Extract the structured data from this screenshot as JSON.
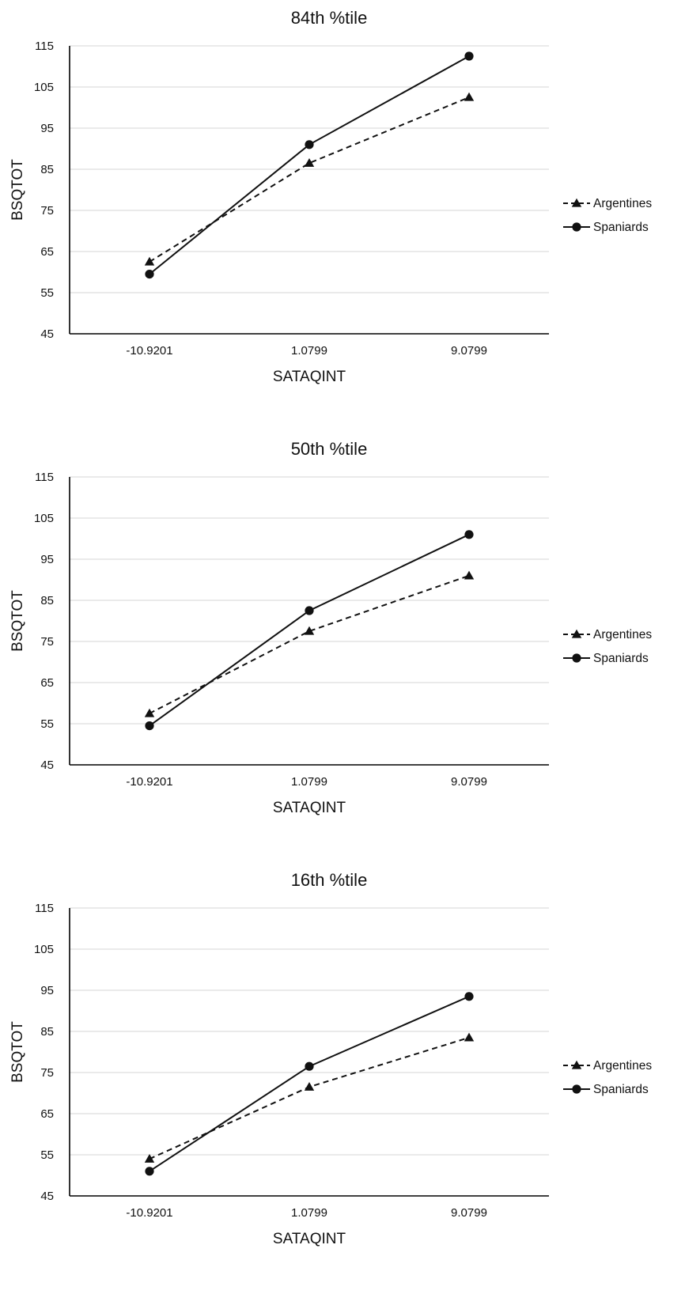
{
  "chart_data": [
    {
      "type": "line",
      "title": "84th %tile",
      "xlabel": "SATAQINT",
      "ylabel": "BSQTOT",
      "categories": [
        "-10.9201",
        "1.0799",
        "9.0799"
      ],
      "ylim": [
        45,
        115
      ],
      "yticks": [
        "45",
        "55",
        "65",
        "75",
        "85",
        "95",
        "105",
        "115"
      ],
      "grid": true,
      "legend_position": "right",
      "series": [
        {
          "name": "Argentines",
          "values": [
            62.5,
            86.5,
            102.5
          ],
          "line_style": "dashed",
          "marker": "triangle",
          "color": "#111111"
        },
        {
          "name": "Spaniards",
          "values": [
            59.5,
            91,
            112.5
          ],
          "line_style": "solid",
          "marker": "circle",
          "color": "#111111"
        }
      ]
    },
    {
      "type": "line",
      "title": "50th %tile",
      "xlabel": "SATAQINT",
      "ylabel": "BSQTOT",
      "categories": [
        "-10.9201",
        "1.0799",
        "9.0799"
      ],
      "ylim": [
        45,
        115
      ],
      "yticks": [
        "45",
        "55",
        "65",
        "75",
        "85",
        "95",
        "105",
        "115"
      ],
      "grid": true,
      "legend_position": "right",
      "series": [
        {
          "name": "Argentines",
          "values": [
            57.5,
            77.5,
            91
          ],
          "line_style": "dashed",
          "marker": "triangle",
          "color": "#111111"
        },
        {
          "name": "Spaniards",
          "values": [
            54.5,
            82.5,
            101
          ],
          "line_style": "solid",
          "marker": "circle",
          "color": "#111111"
        }
      ]
    },
    {
      "type": "line",
      "title": "16th %tile",
      "xlabel": "SATAQINT",
      "ylabel": "BSQTOT",
      "categories": [
        "-10.9201",
        "1.0799",
        "9.0799"
      ],
      "ylim": [
        45,
        115
      ],
      "yticks": [
        "45",
        "55",
        "65",
        "75",
        "85",
        "95",
        "105",
        "115"
      ],
      "grid": true,
      "legend_position": "right",
      "series": [
        {
          "name": "Argentines",
          "values": [
            54,
            71.5,
            83.5
          ],
          "line_style": "dashed",
          "marker": "triangle",
          "color": "#111111"
        },
        {
          "name": "Spaniards",
          "values": [
            51,
            76.5,
            93.5
          ],
          "line_style": "solid",
          "marker": "circle",
          "color": "#111111"
        }
      ]
    }
  ]
}
